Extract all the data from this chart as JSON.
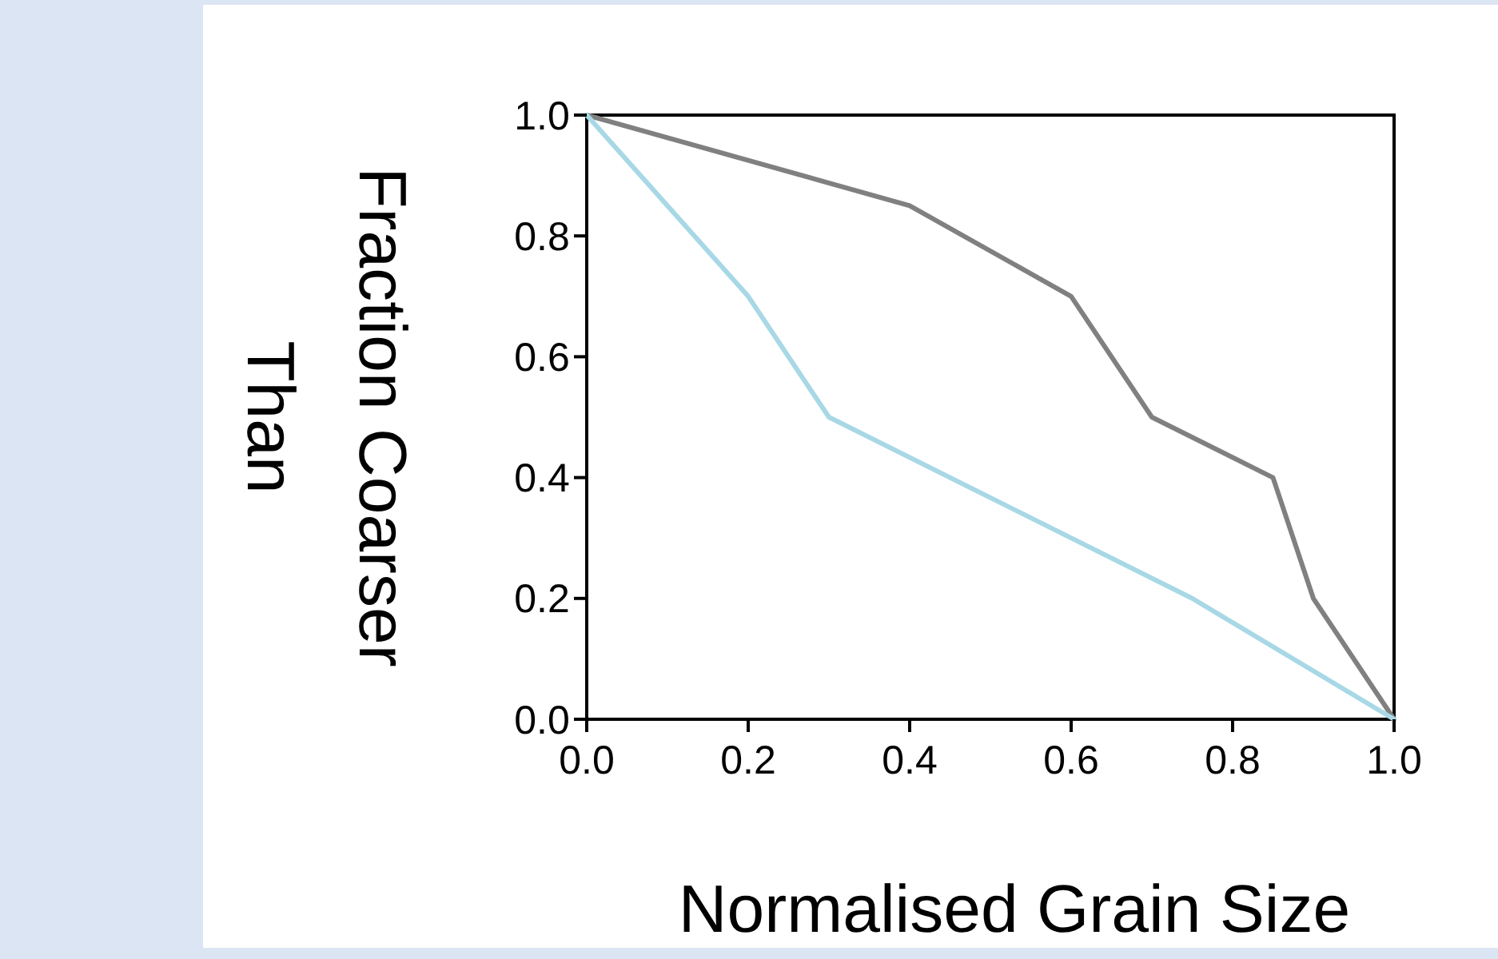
{
  "chart_data": {
    "type": "line",
    "xlabel": "Normalised Grain Size",
    "ylabel": "Fraction Coarser Than",
    "xlim": [
      0,
      1
    ],
    "ylim": [
      0,
      1
    ],
    "xticks": [
      {
        "value": 0,
        "label": "0.0"
      },
      {
        "value": 0.2,
        "label": "0.2"
      },
      {
        "value": 0.4,
        "label": "0.4"
      },
      {
        "value": 0.6,
        "label": "0.6"
      },
      {
        "value": 0.8,
        "label": "0.8"
      },
      {
        "value": 1,
        "label": "1.0"
      }
    ],
    "yticks": [
      {
        "value": 0,
        "label": "0.0"
      },
      {
        "value": 0.2,
        "label": "0.2"
      },
      {
        "value": 0.4,
        "label": "0.4"
      },
      {
        "value": 0.6,
        "label": "0.6"
      },
      {
        "value": 0.8,
        "label": "0.8"
      },
      {
        "value": 1,
        "label": "1.0"
      }
    ],
    "grid": false,
    "marker": "none",
    "line_style": "solid",
    "series": [
      {
        "color": "#808080",
        "x": [
          0,
          0.4,
          0.6,
          0.7,
          0.85,
          0.9,
          1
        ],
        "values": [
          1,
          0.85,
          0.7,
          0.5,
          0.4,
          0.2,
          0
        ]
      },
      {
        "color": "#a8d8e6",
        "x": [
          0,
          0.2,
          0.3,
          0.75,
          1
        ],
        "values": [
          1,
          0.7,
          0.5,
          0.2,
          0
        ]
      }
    ]
  }
}
